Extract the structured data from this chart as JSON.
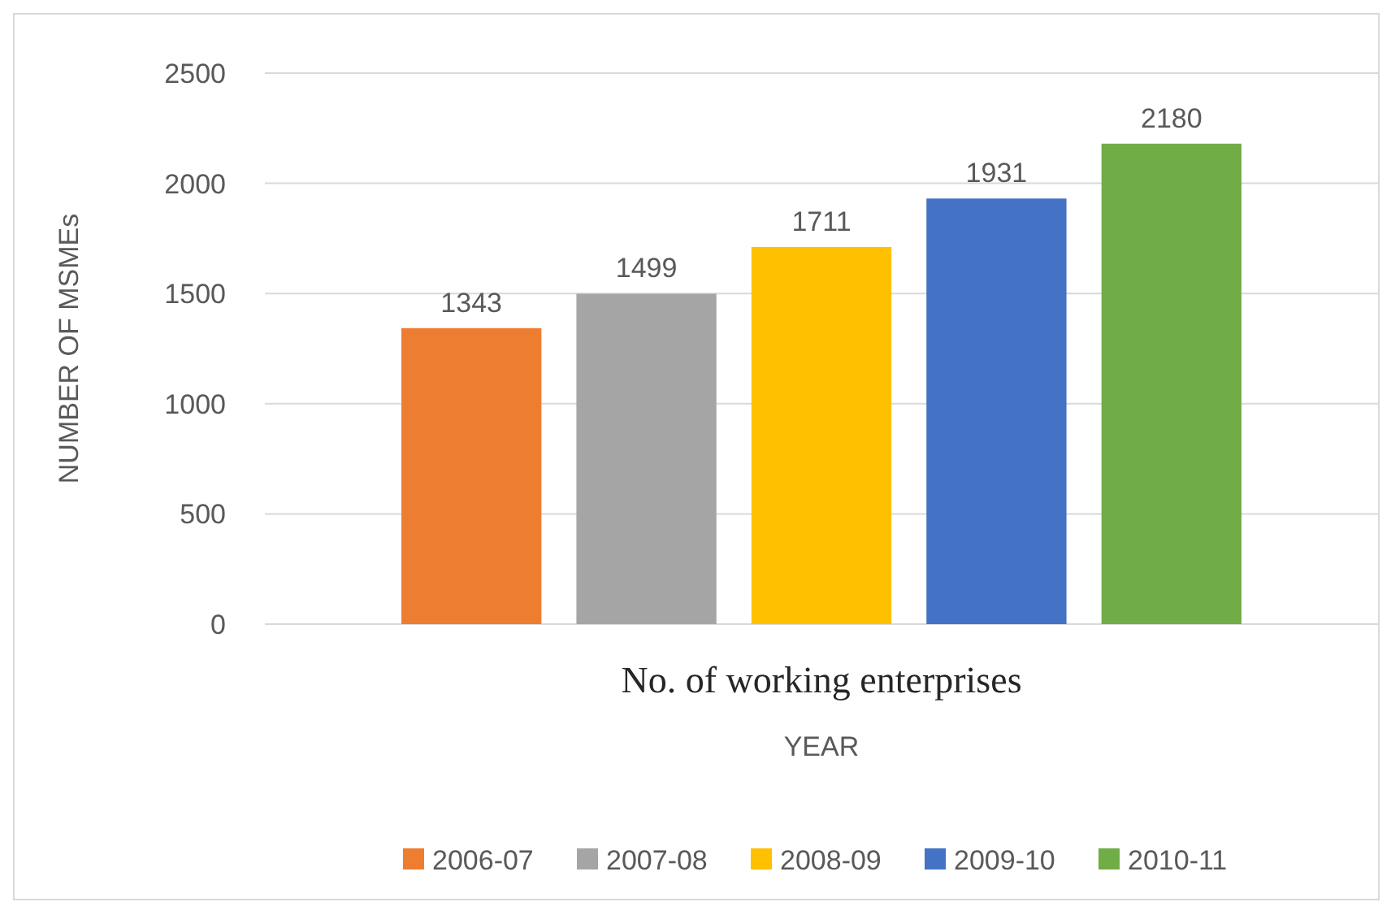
{
  "chart_data": {
    "type": "bar",
    "xlabel": "YEAR",
    "ylabel": "NUMBER OF MSMEs",
    "categories": [
      "No. of working enterprises"
    ],
    "series": [
      {
        "name": "2006-07",
        "color": "#ed7d31",
        "values": [
          1343
        ]
      },
      {
        "name": "2007-08",
        "color": "#a5a5a5",
        "values": [
          1499
        ]
      },
      {
        "name": "2008-09",
        "color": "#ffc000",
        "values": [
          1711
        ]
      },
      {
        "name": "2009-10",
        "color": "#4472c4",
        "values": [
          1931
        ]
      },
      {
        "name": "2010-11",
        "color": "#70ad47",
        "values": [
          2180
        ]
      }
    ],
    "ylim": [
      0,
      2500
    ],
    "yticks": [
      0,
      500,
      1000,
      1500,
      2000,
      2500
    ],
    "grid": "y",
    "data_labels": true,
    "legend": "bottom"
  }
}
